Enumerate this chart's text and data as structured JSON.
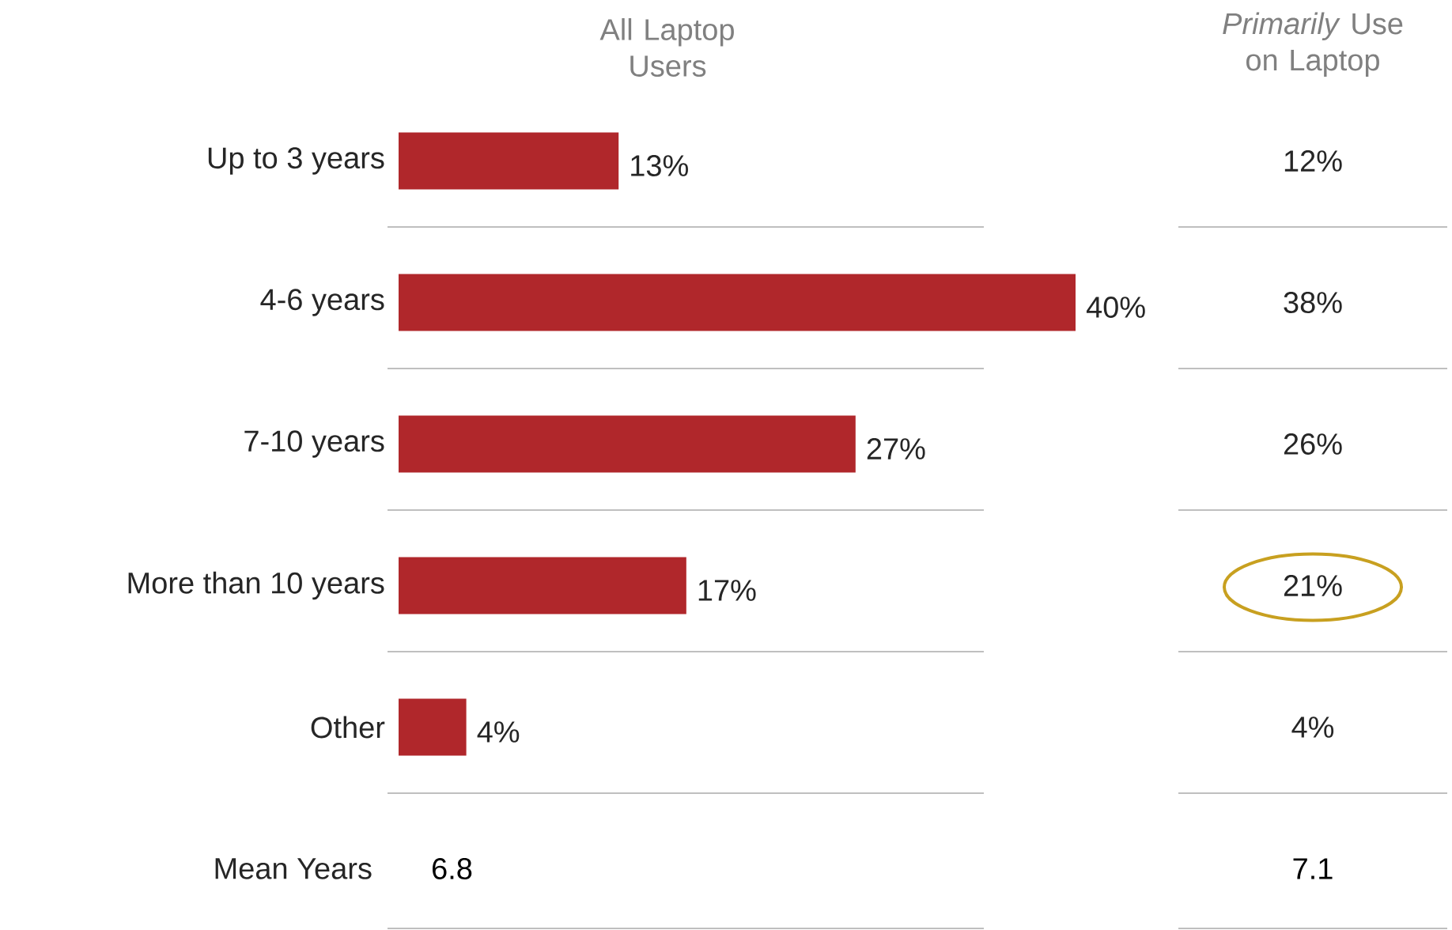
{
  "chart_data": [
    {
      "type": "bar",
      "orientation": "horizontal",
      "title": "All Laptop Users",
      "categories": [
        "Up to 3 years",
        "4-6 years",
        "7-10 years",
        "More than 10 years",
        "Other"
      ],
      "series": [
        {
          "color": "#b0272b",
          "values": [
            13,
            40,
            27,
            17,
            4
          ],
          "value_labels": [
            "13%",
            "40%",
            "27%",
            "17%",
            "4%"
          ]
        }
      ],
      "annotations": [
        "Mean Years",
        "6.8"
      ]
    },
    {
      "type": "other",
      "title": "*Primarily* Use on Laptop",
      "categories": [
        null,
        null,
        null,
        null,
        null
      ],
      "value_labels": [
        "12%",
        "38%",
        "26%",
        "21%",
        "4%"
      ],
      "annotations": [
        "7.1"
      ]
    }
  ]
}
